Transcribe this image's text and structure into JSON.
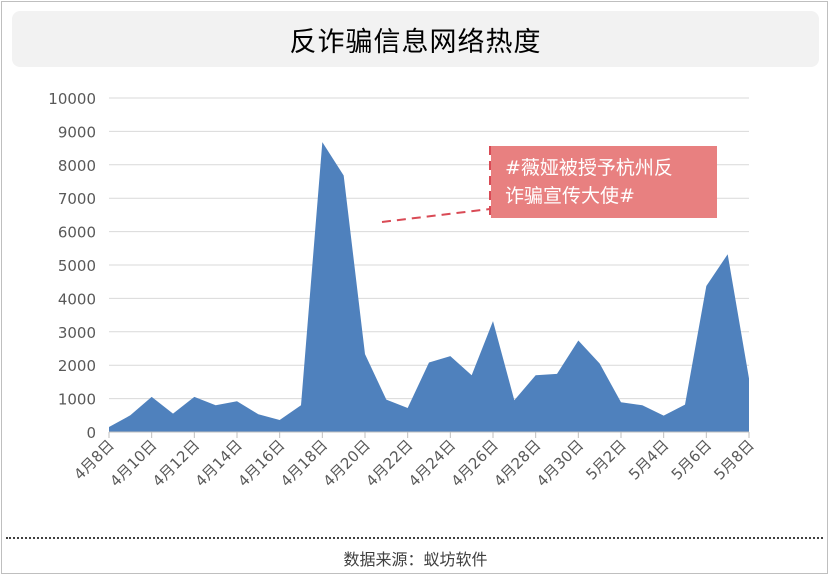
{
  "title": "反诈骗信息网络热度",
  "source": "数据来源：蚁坊软件",
  "colors": {
    "area": "#4f81bd",
    "callout_bg": "#e88080",
    "callout_text": "#ffffff",
    "leader": "#d94a55",
    "grid": "#d9d9d9",
    "axis_text": "#595959"
  },
  "annotation": {
    "line1": "#薇娅被授予杭州反",
    "line2": "诈骗宣传大使#"
  },
  "chart_data": {
    "type": "area",
    "title": "反诈骗信息网络热度",
    "xlabel": "",
    "ylabel": "",
    "ylim": [
      0,
      10000
    ],
    "yticks": [
      0,
      1000,
      2000,
      3000,
      4000,
      5000,
      6000,
      7000,
      8000,
      9000,
      10000
    ],
    "grid": true,
    "x": [
      "4月8日",
      "4月9日",
      "4月10日",
      "4月11日",
      "4月12日",
      "4月13日",
      "4月14日",
      "4月15日",
      "4月16日",
      "4月17日",
      "4月18日",
      "4月19日",
      "4月20日",
      "4月21日",
      "4月22日",
      "4月23日",
      "4月24日",
      "4月25日",
      "4月26日",
      "4月27日",
      "4月28日",
      "4月29日",
      "4月30日",
      "5月1日",
      "5月2日",
      "5月3日",
      "5月4日",
      "5月5日",
      "5月6日",
      "5月7日",
      "5月8日"
    ],
    "xticks": [
      "4月8日",
      "4月10日",
      "4月12日",
      "4月14日",
      "4月16日",
      "4月18日",
      "4月20日",
      "4月22日",
      "4月24日",
      "4月26日",
      "4月28日",
      "4月30日",
      "5月2日",
      "5月4日",
      "5月6日",
      "5月8日"
    ],
    "series": [
      {
        "values": [
          150,
          500,
          1050,
          550,
          1050,
          800,
          920,
          530,
          360,
          800,
          8680,
          7680,
          2330,
          970,
          720,
          2080,
          2270,
          1700,
          3320,
          950,
          1700,
          1740,
          2740,
          2050,
          890,
          800,
          490,
          820,
          4370,
          5320,
          1600
        ]
      }
    ]
  }
}
